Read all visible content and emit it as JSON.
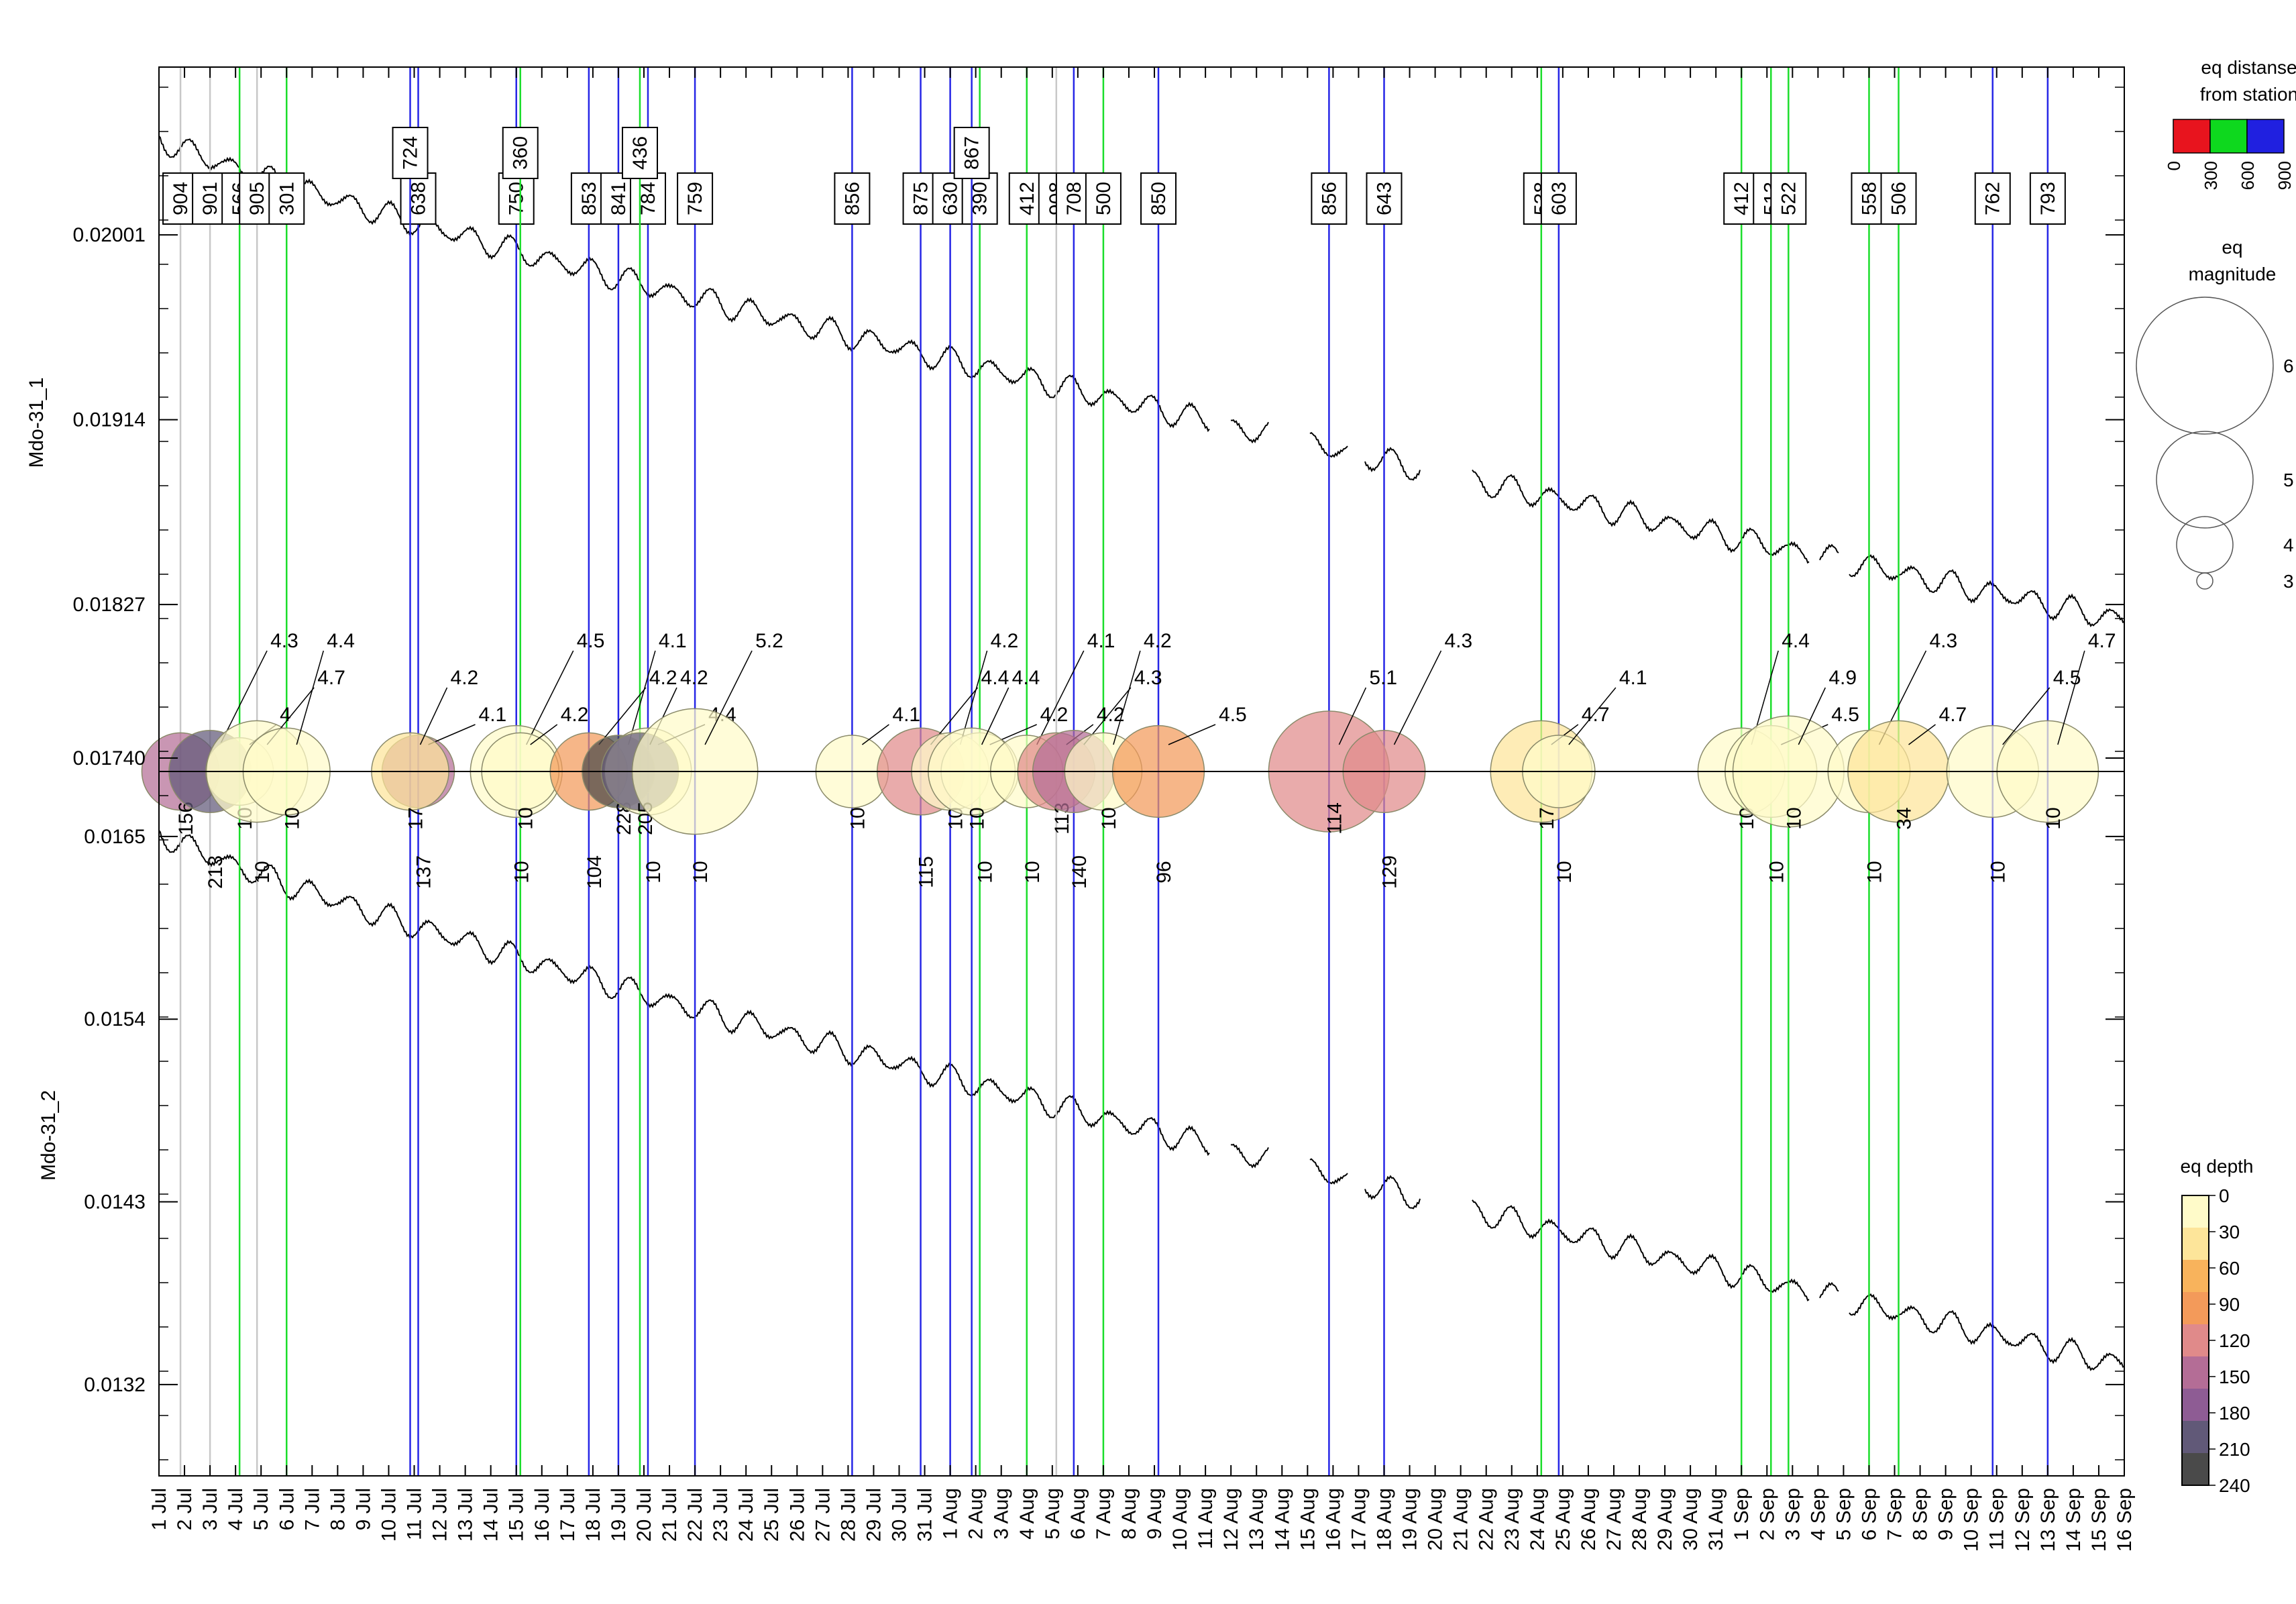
{
  "chart_data": {
    "type": "scatter",
    "date_axis": {
      "start": "1 Jul",
      "end": "16 Sep",
      "tick_labels": [
        "1 Jul",
        "2 Jul",
        "3 Jul",
        "4 Jul",
        "5 Jul",
        "6 Jul",
        "7 Jul",
        "8 Jul",
        "9 Jul",
        "10 Jul",
        "11 Jul",
        "12 Jul",
        "13 Jul",
        "14 Jul",
        "15 Jul",
        "16 Jul",
        "17 Jul",
        "18 Jul",
        "19 Jul",
        "20 Jul",
        "21 Jul",
        "22 Jul",
        "23 Jul",
        "24 Jul",
        "25 Jul",
        "26 Jul",
        "27 Jul",
        "28 Jul",
        "29 Jul",
        "30 Jul",
        "31 Jul",
        "1 Aug",
        "2 Aug",
        "3 Aug",
        "4 Aug",
        "5 Aug",
        "6 Aug",
        "7 Aug",
        "8 Aug",
        "9 Aug",
        "10 Aug",
        "11 Aug",
        "12 Aug",
        "13 Aug",
        "14 Aug",
        "15 Aug",
        "16 Aug",
        "17 Aug",
        "18 Aug",
        "19 Aug",
        "20 Aug",
        "21 Aug",
        "22 Aug",
        "23 Aug",
        "24 Aug",
        "25 Aug",
        "26 Aug",
        "27 Aug",
        "28 Aug",
        "29 Aug",
        "30 Aug",
        "31 Aug",
        "1 Sep",
        "2 Sep",
        "3 Sep",
        "4 Sep",
        "5 Sep",
        "6 Sep",
        "7 Sep",
        "8 Sep",
        "9 Sep",
        "10 Sep",
        "11 Sep",
        "12 Sep",
        "13 Sep",
        "14 Sep",
        "15 Sep",
        "16 Sep"
      ]
    },
    "upper_panel": {
      "ylabel": "Mdo-31_1",
      "yticks": [
        "0.02001",
        "0.01914",
        "0.01827",
        "0.01740"
      ],
      "ylim": [
        0.0172,
        0.0208
      ]
    },
    "lower_panel": {
      "ylabel": "Mdo-31_2",
      "yticks": [
        "0.0165",
        "0.0154",
        "0.0143",
        "0.0132"
      ],
      "ylim": [
        0.01265,
        0.01675
      ]
    },
    "earthquakes": [
      {
        "date": "2 Jul",
        "distance": 904,
        "magnitude": null,
        "depth": 156
      },
      {
        "date": "3 Jul",
        "distance": 901,
        "magnitude": 4.3,
        "depth": 213
      },
      {
        "date": "4 Jul",
        "distance": 566,
        "magnitude": 4,
        "depth": 10
      },
      {
        "date": "5 Jul",
        "distance": 905,
        "magnitude": 4.7,
        "depth": 10
      },
      {
        "date": "6 Jul",
        "distance": 301,
        "magnitude": 4.4,
        "depth": 10
      },
      {
        "date": "11 Jul",
        "distance": 638,
        "magnitude": 4.1,
        "depth": 137
      },
      {
        "date": "11 Jul",
        "distance": 724,
        "magnitude": 4.2,
        "depth": 17
      },
      {
        "date": "15 Jul",
        "distance": 750,
        "magnitude": 4.5,
        "depth": 10
      },
      {
        "date": "15 Jul",
        "distance": 360,
        "magnitude": 4.2,
        "depth": 10
      },
      {
        "date": "18 Jul",
        "distance": 853,
        "magnitude": 4.2,
        "depth": 104
      },
      {
        "date": "19 Jul",
        "distance": 841,
        "magnitude": 4.1,
        "depth": 228
      },
      {
        "date": "20 Jul",
        "distance": 784,
        "magnitude": 4.4,
        "depth": 10
      },
      {
        "date": "20 Jul",
        "distance": 436,
        "magnitude": 4.2,
        "depth": 205
      },
      {
        "date": "22 Jul",
        "distance": 759,
        "magnitude": 5.2,
        "depth": 10
      },
      {
        "date": "28 Jul",
        "distance": 856,
        "magnitude": 4.1,
        "depth": 10
      },
      {
        "date": "31 Jul",
        "distance": 875,
        "magnitude": 4.4,
        "depth": 115
      },
      {
        "date": "1 Aug",
        "distance": 630,
        "magnitude": 4.2,
        "depth": 10
      },
      {
        "date": "2 Aug",
        "distance": 390,
        "magnitude": 4.2,
        "depth": 10
      },
      {
        "date": "2 Aug",
        "distance": 867,
        "magnitude": 4.4,
        "depth": 10
      },
      {
        "date": "4 Aug",
        "distance": 412,
        "magnitude": 4.1,
        "depth": 10
      },
      {
        "date": "5 Aug",
        "distance": 908,
        "magnitude": 4.2,
        "depth": 113
      },
      {
        "date": "6 Aug",
        "distance": 708,
        "magnitude": 4.3,
        "depth": 140
      },
      {
        "date": "7 Aug",
        "distance": 500,
        "magnitude": 4.2,
        "depth": 10
      },
      {
        "date": "9 Aug",
        "distance": 850,
        "magnitude": 4.5,
        "depth": 96
      },
      {
        "date": "16 Aug",
        "distance": 856,
        "magnitude": 5.1,
        "depth": 114
      },
      {
        "date": "18 Aug",
        "distance": 643,
        "magnitude": 4.3,
        "depth": 129
      },
      {
        "date": "24 Aug",
        "distance": 538,
        "magnitude": 4.7,
        "depth": 17
      },
      {
        "date": "25 Aug",
        "distance": 603,
        "magnitude": 4.1,
        "depth": 10
      },
      {
        "date": "1 Sep",
        "distance": 412,
        "magnitude": 4.4,
        "depth": 10
      },
      {
        "date": "2 Sep",
        "distance": 513,
        "magnitude": 4.5,
        "depth": 10
      },
      {
        "date": "3 Sep",
        "distance": 522,
        "magnitude": 4.9,
        "depth": 10
      },
      {
        "date": "6 Sep",
        "distance": 558,
        "magnitude": 4.3,
        "depth": 10
      },
      {
        "date": "7 Sep",
        "distance": 506,
        "magnitude": 4.7,
        "depth": 34
      },
      {
        "date": "11 Sep",
        "distance": 762,
        "magnitude": 4.5,
        "depth": 10
      },
      {
        "date": "13 Sep",
        "distance": 793,
        "magnitude": 4.7,
        "depth": 10
      }
    ],
    "legends": {
      "distance": {
        "title": "eq distanse from station",
        "ticks": [
          "0",
          "300",
          "600",
          "900"
        ],
        "colors": [
          "#e8141e",
          "#0ed81e",
          "#2020e0"
        ]
      },
      "magnitude": {
        "title": "eq magnitude",
        "ticks": [
          "6",
          "5",
          "4",
          "3"
        ]
      },
      "depth": {
        "title": "eq depth",
        "ticks": [
          "0",
          "30",
          "60",
          "90",
          "120",
          "150",
          "180",
          "210",
          "240"
        ],
        "colors": [
          "#fffbc9",
          "#fde59a",
          "#f8b35c",
          "#f39a5a",
          "#e08a8a",
          "#b46d96",
          "#8e5c94",
          "#615978",
          "#4a4a4a"
        ]
      }
    }
  }
}
